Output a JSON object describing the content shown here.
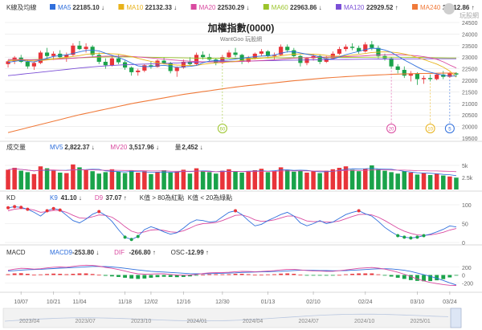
{
  "chart_data": [
    {
      "type": "candlestick",
      "panel": "price",
      "title": "加權指數(0000)",
      "subtitle": "WantGoo 玩股網",
      "panel_label": "K線及均線",
      "watermark": "玩股網",
      "ylim": [
        19500,
        24500
      ],
      "y_ticks": [
        "24500",
        "24000",
        "23500",
        "23000",
        "22500",
        "22000",
        "21500",
        "21000",
        "20500",
        "20000",
        "19500"
      ],
      "legend": [
        {
          "name": "MA5",
          "value": "22185.10",
          "arrow": "↓",
          "color": "#2f6fdc"
        },
        {
          "name": "MA10",
          "value": "22132.33",
          "arrow": "↓",
          "color": "#e8b21a"
        },
        {
          "name": "MA20",
          "value": "22530.29",
          "arrow": "↓",
          "color": "#d94aa0"
        },
        {
          "name": "MA60",
          "value": "22963.86",
          "arrow": "↓",
          "color": "#9bc42a"
        },
        {
          "name": "MA120",
          "value": "22929.52",
          "arrow": "↑",
          "color": "#7b4fd6"
        },
        {
          "name": "MA240",
          "value": "22312.86",
          "arrow": "↑",
          "color": "#f07a3a"
        }
      ],
      "markers": [
        {
          "label": "60",
          "color": "#9bc42a",
          "x_index": 33
        },
        {
          "label": "20",
          "color": "#d94aa0",
          "x_index": 59
        },
        {
          "label": "10",
          "color": "#e8b21a",
          "x_index": 65
        },
        {
          "label": "5",
          "color": "#2f6fdc",
          "x_index": 68
        }
      ]
    },
    {
      "type": "bar",
      "panel": "volume",
      "panel_label": "成交量",
      "ylim": [
        0,
        6
      ],
      "y_ticks": [
        "5k",
        "2.5k"
      ],
      "legend": [
        {
          "name": "MV5",
          "value": "2,822.37",
          "arrow": "↓",
          "color": "#2f6fdc"
        },
        {
          "name": "MV20",
          "value": "3,517.96",
          "arrow": "↓",
          "color": "#d94aa0"
        },
        {
          "name": "量",
          "value": "2,452",
          "arrow": "↓",
          "color": "#333333"
        }
      ]
    },
    {
      "type": "line",
      "panel": "kd",
      "panel_label": "KD",
      "ylim": [
        0,
        100
      ],
      "y_ticks": [
        "100",
        "50",
        "0"
      ],
      "legend": [
        {
          "name": "K9",
          "value": "41.10",
          "arrow": "↓",
          "color": "#2f6fdc"
        },
        {
          "name": "D9",
          "value": "37.07",
          "arrow": "↑",
          "color": "#d94aa0"
        },
        {
          "name": "K值 > 80為紅點",
          "value": "",
          "arrow": "",
          "color": "#333333"
        },
        {
          "name": "K值 < 20為綠點",
          "value": "",
          "arrow": "",
          "color": "#333333"
        }
      ]
    },
    {
      "type": "bar",
      "panel": "macd",
      "panel_label": "MACD",
      "ylim": [
        -400,
        400
      ],
      "y_ticks": [
        "200",
        "0",
        "-200"
      ],
      "legend": [
        {
          "name": "MACD9",
          "value": "-253.80",
          "arrow": "↓",
          "color": "#2f6fdc"
        },
        {
          "name": "DIF",
          "value": "-266.80",
          "arrow": "↑",
          "color": "#d94aa0"
        },
        {
          "name": "OSC",
          "value": "-12.99",
          "arrow": "↑",
          "color": "#333333"
        }
      ]
    }
  ],
  "series": {
    "ohlc": [
      [
        22700,
        22880,
        22550,
        22820
      ],
      [
        22820,
        23050,
        22700,
        22980
      ],
      [
        22980,
        23100,
        22750,
        22800
      ],
      [
        22800,
        22900,
        22500,
        22600
      ],
      [
        22600,
        22820,
        22450,
        22750
      ],
      [
        22750,
        23280,
        22700,
        23200
      ],
      [
        23200,
        23400,
        22950,
        23050
      ],
      [
        23050,
        23250,
        22880,
        23150
      ],
      [
        23150,
        23300,
        22950,
        23000
      ],
      [
        23000,
        23200,
        22800,
        23100
      ],
      [
        23100,
        23600,
        23050,
        23500
      ],
      [
        23500,
        23700,
        23300,
        23350
      ],
      [
        23350,
        23600,
        23200,
        23450
      ],
      [
        23450,
        23520,
        23000,
        23100
      ],
      [
        23100,
        23200,
        22700,
        22800
      ],
      [
        22800,
        22950,
        22500,
        22650
      ],
      [
        22650,
        23050,
        22600,
        22950
      ],
      [
        22950,
        23100,
        22700,
        22780
      ],
      [
        22780,
        22850,
        22450,
        22550
      ],
      [
        22550,
        22600,
        22200,
        22350
      ],
      [
        22350,
        22500,
        22200,
        22420
      ],
      [
        22420,
        22700,
        22350,
        22650
      ],
      [
        22650,
        22800,
        22500,
        22580
      ],
      [
        22580,
        22900,
        22550,
        22850
      ],
      [
        22850,
        23000,
        22700,
        22750
      ],
      [
        22750,
        22800,
        22300,
        22400
      ],
      [
        22400,
        22600,
        22150,
        22550
      ],
      [
        22550,
        22900,
        22500,
        22800
      ],
      [
        22800,
        23000,
        22650,
        22700
      ],
      [
        22700,
        23200,
        22650,
        23100
      ],
      [
        23100,
        23250,
        22900,
        23000
      ],
      [
        23000,
        23150,
        22800,
        22900
      ],
      [
        22900,
        22950,
        22650,
        22750
      ],
      [
        22750,
        23100,
        22700,
        23000
      ],
      [
        23000,
        23300,
        22950,
        23200
      ],
      [
        23200,
        23400,
        23000,
        23100
      ],
      [
        23100,
        23150,
        22700,
        22800
      ],
      [
        22800,
        23050,
        22750,
        22950
      ],
      [
        22950,
        23200,
        22900,
        23150
      ],
      [
        23150,
        23350,
        23050,
        23250
      ],
      [
        23250,
        23300,
        22950,
        23050
      ],
      [
        23050,
        23200,
        22900,
        23100
      ],
      [
        23100,
        23550,
        23050,
        23450
      ],
      [
        23450,
        23550,
        23200,
        23300
      ],
      [
        23300,
        23400,
        23000,
        23050
      ],
      [
        23050,
        23100,
        22600,
        22750
      ],
      [
        22750,
        23000,
        22650,
        22950
      ],
      [
        22950,
        23150,
        22850,
        23050
      ],
      [
        23050,
        23100,
        22700,
        22800
      ],
      [
        22800,
        23050,
        22750,
        22950
      ],
      [
        22950,
        23250,
        22900,
        23150
      ],
      [
        23150,
        23450,
        23100,
        23350
      ],
      [
        23350,
        23550,
        23250,
        23450
      ],
      [
        23450,
        23600,
        23300,
        23400
      ],
      [
        23400,
        23500,
        23150,
        23250
      ],
      [
        23250,
        23650,
        23200,
        23550
      ],
      [
        23550,
        23700,
        23300,
        23400
      ],
      [
        23400,
        23500,
        22950,
        23050
      ],
      [
        23050,
        23150,
        22850,
        22950
      ],
      [
        22950,
        23000,
        22500,
        22600
      ],
      [
        22600,
        22700,
        22300,
        22450
      ],
      [
        22450,
        22600,
        22100,
        22200
      ],
      [
        22200,
        22400,
        21950,
        22300
      ],
      [
        22300,
        22350,
        21800,
        22050
      ],
      [
        22050,
        22200,
        21850,
        22100
      ],
      [
        22100,
        22250,
        21950,
        22050
      ],
      [
        22050,
        22300,
        22000,
        22250
      ],
      [
        22250,
        22400,
        22050,
        22150
      ],
      [
        22150,
        22350,
        22100,
        22300
      ],
      [
        22300,
        22350,
        22150,
        22250
      ]
    ],
    "ma5": [
      22780,
      22820,
      22860,
      22820,
      22790,
      22870,
      22960,
      23030,
      23070,
      23100,
      23160,
      23230,
      23290,
      23300,
      23270,
      23170,
      23080,
      22990,
      22880,
      22740,
      22620,
      22590,
      22590,
      22620,
      22650,
      22610,
      22560,
      22580,
      22600,
      22640,
      22760,
      22830,
      22850,
      22860,
      22880,
      22920,
      22960,
      22990,
      23020,
      23050,
      23060,
      23090,
      23170,
      23230,
      23240,
      23180,
      23130,
      23080,
      23010,
      22920,
      22920,
      23010,
      23110,
      23180,
      23250,
      23330,
      23390,
      23370,
      23310,
      23210,
      23040,
      22880,
      22730,
      22580,
      22440,
      22350,
      22280,
      22220,
      22180,
      22185
    ],
    "ma10": [
      22850,
      22860,
      22870,
      22860,
      22840,
      22850,
      22880,
      22920,
      22960,
      22990,
      23030,
      23070,
      23120,
      23150,
      23160,
      23160,
      23150,
      23130,
      23080,
      23020,
      22950,
      22880,
      22820,
      22760,
      22710,
      22680,
      22660,
      22650,
      22640,
      22640,
      22690,
      22730,
      22750,
      22770,
      22790,
      22820,
      22860,
      22900,
      22930,
      22960,
      22990,
      23020,
      23060,
      23100,
      23130,
      23140,
      23140,
      23130,
      23110,
      23080,
      23050,
      23040,
      23060,
      23090,
      23120,
      23160,
      23200,
      23220,
      23230,
      23220,
      23190,
      23140,
      23070,
      22990,
      22900,
      22800,
      22700,
      22570,
      22400,
      22132
    ],
    "ma20": [
      22900,
      22900,
      22900,
      22895,
      22890,
      22890,
      22895,
      22905,
      22920,
      22935,
      22955,
      22975,
      22995,
      23015,
      23030,
      23040,
      23045,
      23045,
      23040,
      23030,
      23010,
      22990,
      22965,
      22940,
      22915,
      22890,
      22865,
      22845,
      22825,
      22810,
      22800,
      22795,
      22795,
      22795,
      22800,
      22805,
      22815,
      22825,
      22840,
      22855,
      22870,
      22890,
      22910,
      22930,
      22950,
      22965,
      22980,
      22990,
      23000,
      23005,
      23010,
      23015,
      23020,
      23030,
      23045,
      23060,
      23080,
      23095,
      23105,
      23110,
      23110,
      23100,
      23080,
      23055,
      23020,
      22975,
      22910,
      22800,
      22660,
      22530
    ],
    "ma60": [
      22860,
      22870,
      22880,
      22890,
      22900,
      22910,
      22920,
      22930,
      22940,
      22950,
      22960,
      22970,
      22980,
      22990,
      23000,
      23005,
      23010,
      23012,
      23012,
      23010,
      23005,
      23000,
      22995,
      22990,
      22985,
      22980,
      22975,
      22970,
      22965,
      22960,
      22958,
      22956,
      22955,
      22955,
      22955,
      22956,
      22958,
      22960,
      22962,
      22964,
      22966,
      22968,
      22970,
      22972,
      22974,
      22976,
      22978,
      22980,
      22982,
      22984,
      22986,
      22988,
      22990,
      22992,
      22994,
      22996,
      22998,
      23000,
      23000,
      23000,
      22998,
      22996,
      22994,
      22990,
      22985,
      22980,
      22975,
      22970,
      22967,
      22964
    ],
    "ma120": [
      22200,
      22230,
      22260,
      22290,
      22320,
      22350,
      22380,
      22410,
      22440,
      22470,
      22500,
      22530,
      22555,
      22580,
      22600,
      22620,
      22640,
      22655,
      22670,
      22680,
      22690,
      22700,
      22710,
      22720,
      22730,
      22740,
      22750,
      22760,
      22770,
      22780,
      22790,
      22800,
      22810,
      22815,
      22820,
      22825,
      22830,
      22835,
      22840,
      22845,
      22850,
      22855,
      22860,
      22865,
      22870,
      22875,
      22880,
      22885,
      22890,
      22895,
      22898,
      22901,
      22904,
      22907,
      22910,
      22913,
      22916,
      22919,
      22921,
      22923,
      22925,
      22926,
      22927,
      22928,
      22928,
      22929,
      22929,
      22930,
      22930,
      22930
    ],
    "ma240": [
      19740,
      19810,
      19880,
      19950,
      20020,
      20090,
      20160,
      20230,
      20300,
      20370,
      20440,
      20510,
      20570,
      20630,
      20690,
      20750,
      20810,
      20870,
      20930,
      20990,
      21040,
      21090,
      21140,
      21190,
      21240,
      21290,
      21340,
      21390,
      21430,
      21470,
      21510,
      21550,
      21590,
      21630,
      21670,
      21710,
      21740,
      21770,
      21800,
      21830,
      21860,
      21890,
      21920,
      21950,
      21980,
      22005,
      22030,
      22055,
      22080,
      22100,
      22120,
      22140,
      22160,
      22175,
      22190,
      22205,
      22220,
      22232,
      22244,
      22256,
      22266,
      22274,
      22282,
      22290,
      22296,
      22300,
      22304,
      22308,
      22311,
      22313
    ],
    "volume": [
      4.1,
      4.5,
      3.9,
      3.6,
      3.2,
      4.8,
      4.4,
      3.9,
      3.5,
      3.4,
      5.2,
      4.6,
      4.0,
      3.8,
      3.3,
      3.6,
      4.2,
      3.7,
      3.4,
      3.9,
      3.5,
      3.8,
      3.2,
      3.6,
      4.0,
      3.5,
      3.7,
      4.1,
      3.3,
      4.4,
      3.8,
      3.6,
      3.3,
      3.9,
      4.2,
      3.8,
      3.5,
      3.7,
      4.0,
      4.3,
      3.6,
      3.8,
      4.6,
      4.1,
      3.7,
      3.9,
      3.5,
      3.8,
      3.4,
      3.9,
      4.2,
      4.5,
      4.8,
      4.1,
      3.8,
      4.3,
      5.0,
      4.2,
      3.9,
      3.6,
      3.3,
      3.8,
      3.5,
      3.1,
      3.4,
      3.0,
      3.3,
      2.9,
      2.7,
      2.45
    ],
    "k9": [
      92,
      95,
      93,
      88,
      80,
      70,
      84,
      90,
      86,
      72,
      58,
      52,
      62,
      75,
      82,
      72,
      56,
      34,
      14,
      8,
      16,
      34,
      42,
      36,
      28,
      22,
      26,
      38,
      52,
      60,
      58,
      54,
      56,
      68,
      80,
      84,
      74,
      58,
      44,
      48,
      58,
      66,
      74,
      80,
      70,
      52,
      44,
      50,
      58,
      50,
      54,
      64,
      74,
      80,
      84,
      76,
      70,
      56,
      40,
      28,
      18,
      14,
      12,
      14,
      18,
      22,
      28,
      35,
      44,
      41
    ],
    "d9": [
      84,
      88,
      90,
      89,
      86,
      80,
      82,
      85,
      85,
      80,
      72,
      65,
      64,
      68,
      73,
      72,
      67,
      56,
      42,
      30,
      25,
      28,
      33,
      34,
      32,
      28,
      27,
      31,
      38,
      46,
      50,
      51,
      53,
      58,
      65,
      72,
      73,
      68,
      60,
      56,
      57,
      60,
      65,
      70,
      70,
      64,
      57,
      55,
      56,
      54,
      54,
      57,
      63,
      69,
      74,
      75,
      73,
      67,
      58,
      48,
      38,
      30,
      24,
      20,
      19,
      20,
      23,
      27,
      33,
      37
    ],
    "dif": [
      120,
      150,
      170,
      165,
      150,
      160,
      180,
      200,
      205,
      200,
      220,
      240,
      250,
      245,
      225,
      195,
      170,
      140,
      100,
      60,
      30,
      20,
      25,
      30,
      30,
      15,
      0,
      -5,
      0,
      15,
      40,
      55,
      60,
      62,
      70,
      85,
      95,
      90,
      85,
      90,
      100,
      110,
      130,
      145,
      145,
      130,
      115,
      105,
      100,
      95,
      95,
      110,
      130,
      150,
      170,
      180,
      190,
      175,
      150,
      115,
      70,
      20,
      -40,
      -100,
      -150,
      -190,
      -220,
      -245,
      -262,
      -267
    ],
    "macd9": [
      100,
      110,
      125,
      135,
      140,
      145,
      155,
      165,
      175,
      180,
      190,
      200,
      210,
      220,
      220,
      215,
      205,
      190,
      170,
      150,
      130,
      110,
      95,
      85,
      75,
      65,
      55,
      45,
      35,
      30,
      30,
      35,
      40,
      45,
      50,
      55,
      65,
      70,
      75,
      80,
      85,
      90,
      95,
      105,
      115,
      120,
      120,
      118,
      115,
      112,
      108,
      108,
      112,
      120,
      130,
      140,
      150,
      158,
      160,
      155,
      140,
      120,
      90,
      50,
      10,
      -35,
      -85,
      -140,
      -200,
      -254
    ]
  },
  "x_axis": {
    "ticks": [
      {
        "label": "10/07",
        "index": 2
      },
      {
        "label": "10/21",
        "index": 7
      },
      {
        "label": "11/04",
        "index": 11
      },
      {
        "label": "11/18",
        "index": 18
      },
      {
        "label": "12/02",
        "index": 22
      },
      {
        "label": "12/16",
        "index": 27
      },
      {
        "label": "12/30",
        "index": 33
      },
      {
        "label": "01/13",
        "index": 40
      },
      {
        "label": "02/10",
        "index": 47
      },
      {
        "label": "02/24",
        "index": 55
      },
      {
        "label": "03/10",
        "index": 63
      },
      {
        "label": "03/24",
        "index": 68
      }
    ],
    "navigator": [
      "2023/04",
      "2023/07",
      "2023/10",
      "2024/01",
      "2024/04",
      "2024/07",
      "2024/10",
      "2025/01"
    ]
  },
  "colors": {
    "up": "#e8343a",
    "down": "#1aa34a",
    "grid": "#e6e6e6",
    "axis_text": "#666666",
    "label": "#333333",
    "navigator_bg": "#f2f2f2"
  }
}
